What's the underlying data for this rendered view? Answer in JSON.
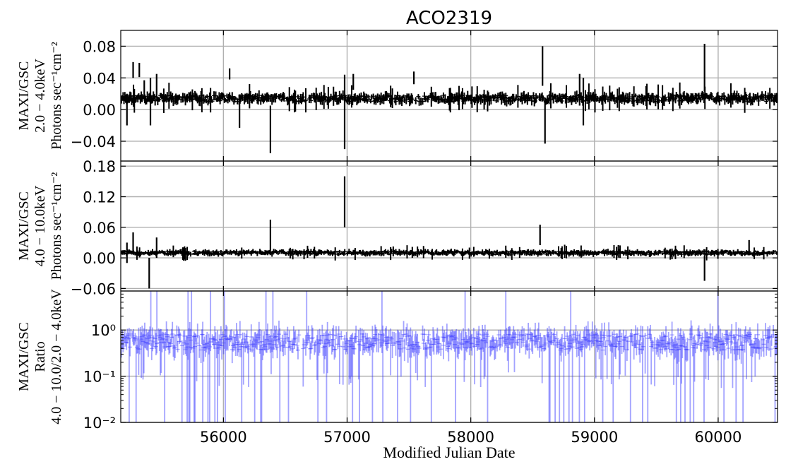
{
  "chart_data": {
    "type": "error-bar-lightcurve",
    "title": "ACO2319",
    "xlabel": "Modified Julian Date",
    "xlim": [
      55170,
      60480
    ],
    "xticks": [
      56000,
      57000,
      58000,
      59000,
      60000
    ],
    "grid": true,
    "panels": [
      {
        "name": "soft",
        "ylabel_lines": [
          "MAXI/GSC",
          "2.0 − 4.0keV",
          "Photons sec⁻¹cm⁻²"
        ],
        "ylim": [
          -0.065,
          0.1
        ],
        "yticks": [
          -0.04,
          0.0,
          0.04,
          0.08
        ],
        "ytick_labels": [
          "−0.04",
          "0.00",
          "0.04",
          "0.08"
        ],
        "scale": "linear",
        "color": "#000000",
        "typical": {
          "mean": 0.014,
          "half_error": 0.005
        },
        "spikes": [
          [
            55220,
            0.0,
            0.02
          ],
          [
            55270,
            0.05,
            0.01
          ],
          [
            55320,
            0.05,
            0.009
          ],
          [
            55360,
            0.025,
            0.012
          ],
          [
            55410,
            0.01,
            0.03
          ],
          [
            55460,
            0.03,
            0.015
          ],
          [
            56050,
            0.045,
            0.007
          ],
          [
            56130,
            -0.005,
            0.018
          ],
          [
            56380,
            -0.025,
            0.03
          ],
          [
            56980,
            -0.003,
            0.047
          ],
          [
            57050,
            0.035,
            0.01
          ],
          [
            57540,
            0.04,
            0.008
          ],
          [
            58580,
            0.055,
            0.025
          ],
          [
            58600,
            -0.015,
            0.028
          ],
          [
            58880,
            0.025,
            0.02
          ],
          [
            58910,
            0.01,
            0.03
          ],
          [
            59890,
            0.053,
            0.03
          ],
          [
            60500,
            0.0,
            0.015
          ]
        ]
      },
      {
        "name": "hard",
        "ylabel_lines": [
          "MAXI/GSC",
          "4.0 − 10.0keV",
          "Photons sec⁻¹cm⁻²"
        ],
        "ylim": [
          -0.065,
          0.19
        ],
        "yticks": [
          -0.06,
          0.0,
          0.06,
          0.12,
          0.18
        ],
        "ytick_labels": [
          "−0.06",
          "0.00",
          "0.06",
          "0.12",
          "0.18"
        ],
        "scale": "linear",
        "color": "#000000",
        "typical": {
          "mean": 0.01,
          "half_error": 0.004
        },
        "spikes": [
          [
            55220,
            0.01,
            0.02
          ],
          [
            55270,
            0.03,
            0.02
          ],
          [
            55400,
            -0.03,
            0.03
          ],
          [
            55460,
            0.02,
            0.02
          ],
          [
            56380,
            0.045,
            0.03
          ],
          [
            56980,
            0.11,
            0.05
          ],
          [
            58560,
            0.045,
            0.02
          ],
          [
            59890,
            -0.02,
            0.025
          ],
          [
            60250,
            0.02,
            0.015
          ]
        ]
      },
      {
        "name": "ratio",
        "ylabel_lines": [
          "MAXI/GSC",
          "Ratio",
          "4.0 − 10.0/2.0 − 4.0keV"
        ],
        "ylim": [
          0.01,
          7
        ],
        "yticks": [
          0.01,
          0.1,
          1
        ],
        "ytick_labels": [
          "10⁻²",
          "10⁻¹",
          "10⁰"
        ],
        "scale": "log",
        "color": "#3333ff",
        "typical": {
          "mean": 0.55,
          "low": 0.35,
          "high": 0.85
        }
      }
    ]
  }
}
